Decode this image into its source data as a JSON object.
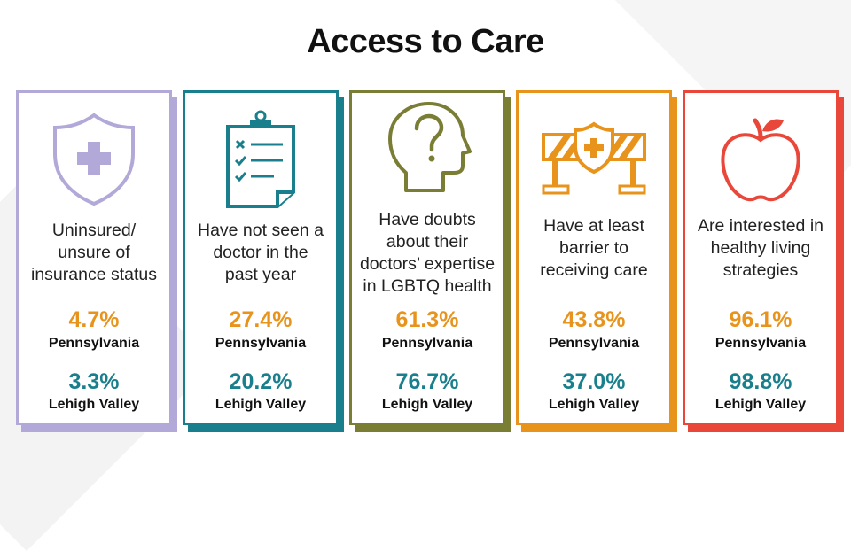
{
  "title": "Access to Care",
  "cards": [
    {
      "label": [
        "Uninsured/",
        "unsure of",
        "insurance status"
      ],
      "pa_value": "4.7%",
      "pa_label": "Pennsylvania",
      "lv_value": "3.3%",
      "lv_label": "Lehigh Valley",
      "color": "#b3a9d9",
      "value_color": "#e8931b",
      "lv_color": "#1a7f8c",
      "icon": "shield-plus-icon"
    },
    {
      "label": [
        "Have not seen a",
        "doctor in the",
        "past year"
      ],
      "pa_value": "27.4%",
      "pa_label": "Pennsylvania",
      "lv_value": "20.2%",
      "lv_label": "Lehigh Valley",
      "color": "#1a7f8c",
      "value_color": "#e8931b",
      "lv_color": "#1a7f8c",
      "icon": "clipboard-checklist-icon"
    },
    {
      "label": [
        "Have doubts",
        "about their",
        "doctors’ expertise",
        "in LGBTQ health"
      ],
      "pa_value": "61.3%",
      "pa_label": "Pennsylvania",
      "lv_value": "76.7%",
      "lv_label": "Lehigh Valley",
      "color": "#7a7d34",
      "value_color": "#e8931b",
      "lv_color": "#1a7f8c",
      "icon": "head-question-icon"
    },
    {
      "label": [
        "Have at least",
        "barrier to",
        "receiving care"
      ],
      "pa_value": "43.8%",
      "pa_label": "Pennsylvania",
      "lv_value": "37.0%",
      "lv_label": "Lehigh Valley",
      "color": "#e8931b",
      "value_color": "#e8931b",
      "lv_color": "#1a7f8c",
      "icon": "barrier-shield-icon"
    },
    {
      "label": [
        "Are interested in",
        "healthy living",
        "strategies"
      ],
      "pa_value": "96.1%",
      "pa_label": "Pennsylvania",
      "lv_value": "98.8%",
      "lv_label": "Lehigh Valley",
      "color": "#e8473a",
      "value_color": "#e8931b",
      "lv_color": "#1a7f8c",
      "icon": "apple-icon"
    }
  ]
}
